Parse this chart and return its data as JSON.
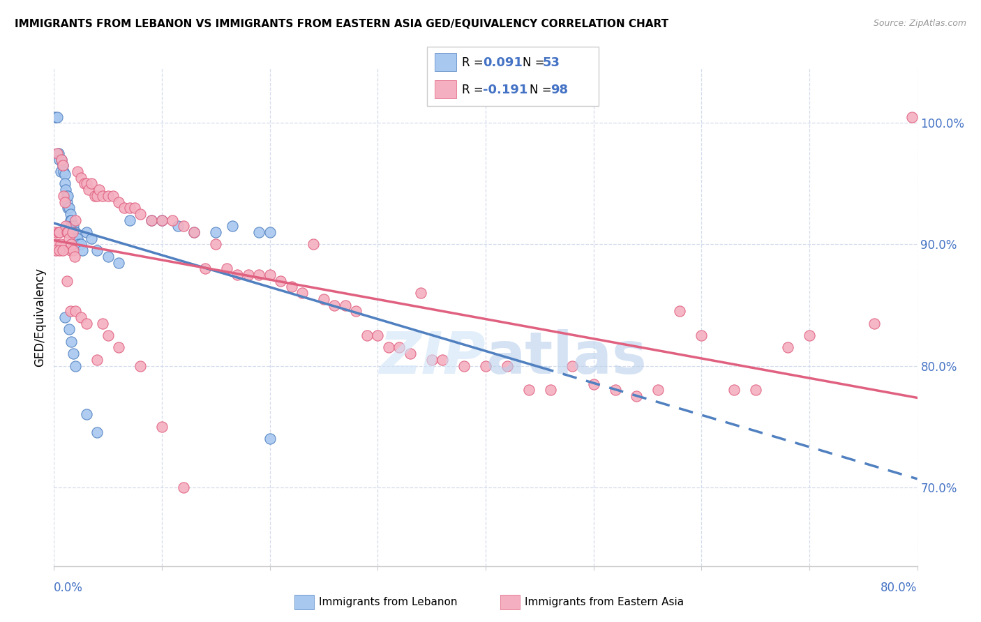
{
  "title": "IMMIGRANTS FROM LEBANON VS IMMIGRANTS FROM EASTERN ASIA GED/EQUIVALENCY CORRELATION CHART",
  "source": "Source: ZipAtlas.com",
  "ylabel": "GED/Equivalency",
  "ytick_labels": [
    "70.0%",
    "80.0%",
    "90.0%",
    "100.0%"
  ],
  "ytick_values": [
    0.7,
    0.8,
    0.9,
    1.0
  ],
  "xmin": 0.0,
  "xmax": 0.8,
  "ymin": 0.635,
  "ymax": 1.045,
  "color_blue": "#a8c8f0",
  "color_pink": "#f4b0c0",
  "color_blue_dark": "#5080c0",
  "color_pink_dark": "#e06080",
  "color_blue_text": "#4472c4",
  "color_grid": "#d0d8e8",
  "blue_x": [
    0.001,
    0.003,
    0.004,
    0.005,
    0.006,
    0.007,
    0.008,
    0.009,
    0.01,
    0.01,
    0.011,
    0.012,
    0.012,
    0.013,
    0.013,
    0.014,
    0.015,
    0.015,
    0.016,
    0.016,
    0.017,
    0.018,
    0.018,
    0.019,
    0.02,
    0.02,
    0.021,
    0.022,
    0.023,
    0.025,
    0.026,
    0.03,
    0.035,
    0.04,
    0.05,
    0.06,
    0.07,
    0.09,
    0.1,
    0.115,
    0.13,
    0.15,
    0.165,
    0.19,
    0.2,
    0.01,
    0.014,
    0.016,
    0.018,
    0.02,
    0.03,
    0.04,
    0.2
  ],
  "blue_y": [
    1.005,
    1.005,
    0.975,
    0.97,
    0.96,
    0.97,
    0.965,
    0.96,
    0.958,
    0.95,
    0.945,
    0.94,
    0.935,
    0.93,
    0.94,
    0.93,
    0.925,
    0.92,
    0.92,
    0.915,
    0.915,
    0.91,
    0.915,
    0.91,
    0.91,
    0.905,
    0.905,
    0.905,
    0.9,
    0.9,
    0.895,
    0.91,
    0.905,
    0.895,
    0.89,
    0.885,
    0.92,
    0.92,
    0.92,
    0.915,
    0.91,
    0.91,
    0.915,
    0.91,
    0.91,
    0.84,
    0.83,
    0.82,
    0.81,
    0.8,
    0.76,
    0.745,
    0.74
  ],
  "pink_x": [
    0.001,
    0.002,
    0.003,
    0.004,
    0.005,
    0.006,
    0.007,
    0.008,
    0.009,
    0.01,
    0.011,
    0.012,
    0.013,
    0.014,
    0.015,
    0.016,
    0.017,
    0.018,
    0.019,
    0.02,
    0.022,
    0.025,
    0.028,
    0.03,
    0.032,
    0.035,
    0.038,
    0.04,
    0.042,
    0.045,
    0.05,
    0.055,
    0.06,
    0.065,
    0.07,
    0.075,
    0.08,
    0.09,
    0.1,
    0.11,
    0.12,
    0.13,
    0.14,
    0.15,
    0.16,
    0.17,
    0.18,
    0.19,
    0.2,
    0.21,
    0.22,
    0.23,
    0.24,
    0.25,
    0.26,
    0.27,
    0.28,
    0.29,
    0.3,
    0.31,
    0.32,
    0.33,
    0.34,
    0.35,
    0.36,
    0.38,
    0.4,
    0.42,
    0.44,
    0.46,
    0.48,
    0.5,
    0.52,
    0.54,
    0.56,
    0.58,
    0.6,
    0.63,
    0.65,
    0.68,
    0.7,
    0.76,
    0.795,
    0.002,
    0.005,
    0.008,
    0.012,
    0.015,
    0.02,
    0.025,
    0.03,
    0.04,
    0.045,
    0.05,
    0.06,
    0.08,
    0.1,
    0.12
  ],
  "pink_y": [
    0.91,
    0.9,
    0.975,
    0.91,
    0.91,
    0.9,
    0.97,
    0.965,
    0.94,
    0.935,
    0.915,
    0.91,
    0.91,
    0.905,
    0.895,
    0.9,
    0.91,
    0.895,
    0.89,
    0.92,
    0.96,
    0.955,
    0.95,
    0.95,
    0.945,
    0.95,
    0.94,
    0.94,
    0.945,
    0.94,
    0.94,
    0.94,
    0.935,
    0.93,
    0.93,
    0.93,
    0.925,
    0.92,
    0.92,
    0.92,
    0.915,
    0.91,
    0.88,
    0.9,
    0.88,
    0.875,
    0.875,
    0.875,
    0.875,
    0.87,
    0.865,
    0.86,
    0.9,
    0.855,
    0.85,
    0.85,
    0.845,
    0.825,
    0.825,
    0.815,
    0.815,
    0.81,
    0.86,
    0.805,
    0.805,
    0.8,
    0.8,
    0.8,
    0.78,
    0.78,
    0.8,
    0.785,
    0.78,
    0.775,
    0.78,
    0.845,
    0.825,
    0.78,
    0.78,
    0.815,
    0.825,
    0.835,
    1.005,
    0.895,
    0.895,
    0.895,
    0.87,
    0.845,
    0.845,
    0.84,
    0.835,
    0.805,
    0.835,
    0.825,
    0.815,
    0.8,
    0.75,
    0.7
  ]
}
